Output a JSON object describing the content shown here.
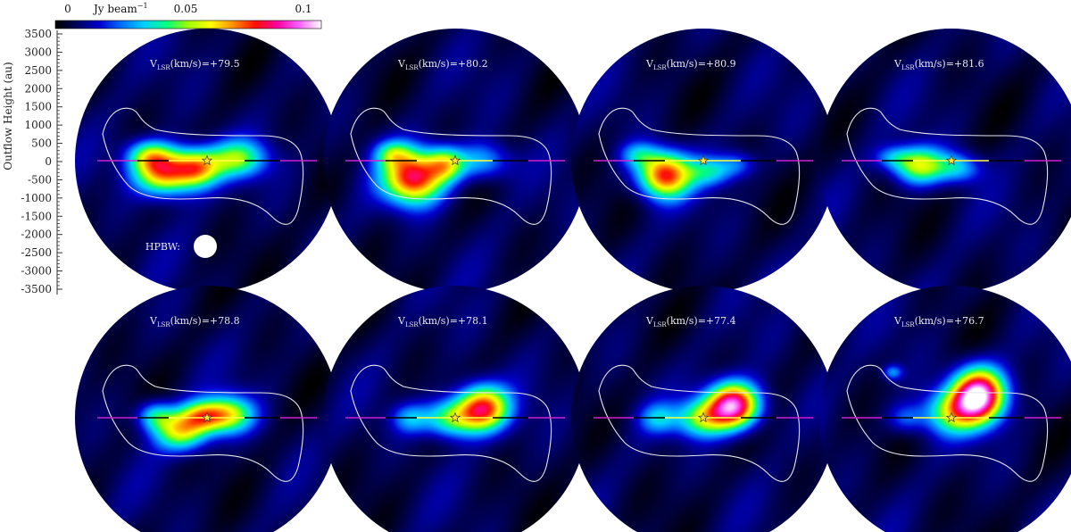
{
  "colorbar": {
    "ticks": [
      "0",
      "0.05",
      "0.1"
    ],
    "unit": "Jy beam",
    "unit_exponent": "−1",
    "gradient": [
      "#000000",
      "#000060",
      "#0000d0",
      "#0070ff",
      "#00d0ff",
      "#00ff80",
      "#a0ff00",
      "#ffff00",
      "#ff9000",
      "#ff1000",
      "#ff00a0",
      "#ff60ff",
      "#ffffff"
    ]
  },
  "axis": {
    "ylabel": "Outflow Height (au)",
    "ticks": [
      "3500",
      "3000",
      "2500",
      "2000",
      "1500",
      "1000",
      "500",
      "0",
      "-500",
      "-1000",
      "-1500",
      "-2000",
      "-2500",
      "-3000",
      "-3500"
    ]
  },
  "beam_label": "HPBW:",
  "panels": [
    {
      "vprefix": "V",
      "vsub": "LSR",
      "vunit": "(km/s)=",
      "vvalue": "+79.5",
      "blobs": [
        [
          -0.33,
          -0.08,
          0.16,
          0.12,
          0.75
        ],
        [
          -0.08,
          -0.05,
          0.12,
          0.1,
          0.55
        ],
        [
          0.22,
          0.02,
          0.16,
          0.1,
          0.45
        ],
        [
          -0.45,
          0.05,
          0.12,
          0.08,
          0.35
        ]
      ]
    },
    {
      "vprefix": "V",
      "vsub": "LSR",
      "vunit": "(km/s)=",
      "vvalue": "+80.2",
      "blobs": [
        [
          -0.32,
          -0.12,
          0.16,
          0.14,
          0.85
        ],
        [
          -0.08,
          -0.02,
          0.1,
          0.09,
          0.45
        ],
        [
          0.2,
          0.0,
          0.15,
          0.1,
          0.3
        ],
        [
          -0.48,
          0.06,
          0.1,
          0.07,
          0.3
        ]
      ]
    },
    {
      "vprefix": "V",
      "vsub": "LSR",
      "vunit": "(km/s)=",
      "vvalue": "+80.9",
      "blobs": [
        [
          -0.3,
          -0.1,
          0.14,
          0.12,
          0.8
        ],
        [
          0.05,
          -0.08,
          0.12,
          0.08,
          0.3
        ],
        [
          0.25,
          -0.02,
          0.1,
          0.07,
          0.2
        ],
        [
          -0.5,
          0.05,
          0.1,
          0.07,
          0.25
        ]
      ]
    },
    {
      "vprefix": "V",
      "vsub": "LSR",
      "vunit": "(km/s)=",
      "vvalue": "+81.6",
      "blobs": [
        [
          -0.25,
          -0.03,
          0.14,
          0.1,
          0.55
        ],
        [
          0.05,
          -0.05,
          0.12,
          0.08,
          0.3
        ],
        [
          -0.45,
          0.03,
          0.1,
          0.06,
          0.2
        ]
      ]
    },
    {
      "vprefix": "V",
      "vsub": "LSR",
      "vunit": "(km/s)=",
      "vvalue": "+78.8",
      "blobs": [
        [
          -0.2,
          -0.1,
          0.14,
          0.1,
          0.55
        ],
        [
          0.15,
          0.03,
          0.14,
          0.1,
          0.55
        ],
        [
          -0.05,
          0.02,
          0.12,
          0.08,
          0.45
        ],
        [
          -0.4,
          0.02,
          0.1,
          0.08,
          0.35
        ]
      ]
    },
    {
      "vprefix": "V",
      "vsub": "LSR",
      "vunit": "(km/s)=",
      "vvalue": "+78.1",
      "blobs": [
        [
          0.2,
          0.08,
          0.14,
          0.12,
          0.8
        ],
        [
          -0.05,
          0.0,
          0.14,
          0.1,
          0.45
        ],
        [
          -0.35,
          0.0,
          0.1,
          0.08,
          0.25
        ]
      ]
    },
    {
      "vprefix": "V",
      "vsub": "LSR",
      "vunit": "(km/s)=",
      "vvalue": "+77.4",
      "blobs": [
        [
          0.22,
          0.1,
          0.14,
          0.12,
          1.0
        ],
        [
          -0.02,
          0.0,
          0.14,
          0.1,
          0.45
        ],
        [
          -0.35,
          0.0,
          0.1,
          0.08,
          0.25
        ]
      ]
    },
    {
      "vprefix": "V",
      "vsub": "LSR",
      "vunit": "(km/s)=",
      "vvalue": "+76.7",
      "blobs": [
        [
          0.2,
          0.18,
          0.14,
          0.14,
          1.05
        ],
        [
          0.0,
          0.05,
          0.16,
          0.12,
          0.45
        ],
        [
          -0.35,
          0.0,
          0.1,
          0.08,
          0.2
        ],
        [
          -0.45,
          0.35,
          0.05,
          0.04,
          0.25
        ]
      ]
    }
  ]
}
